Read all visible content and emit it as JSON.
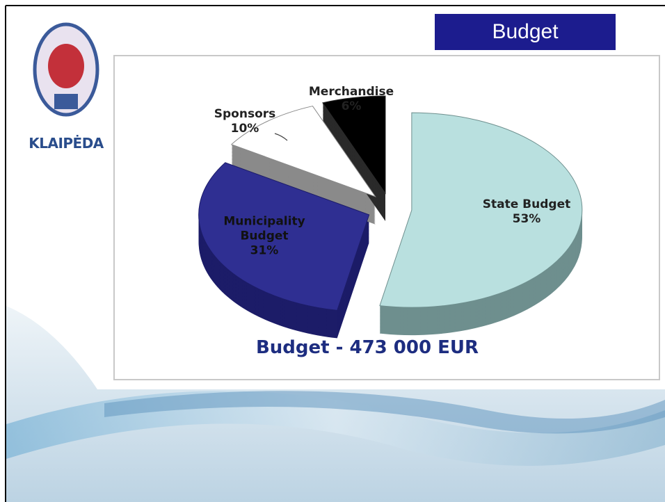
{
  "slide_title": "Budget",
  "logo": {
    "text": "KLAIPĖDA"
  },
  "chart_data": {
    "type": "pie",
    "title": "Budget - 473 000 EUR",
    "categories": [
      "State Budget",
      "Municipality Budget",
      "Sponsors",
      "Merchandise"
    ],
    "values": [
      53,
      31,
      10,
      6
    ],
    "value_labels": [
      "53%",
      "31%",
      "10%",
      "6%"
    ],
    "colors": [
      "#b9e0df",
      "#2f2f92",
      "#ffffff",
      "#000000"
    ],
    "side_colors": [
      "#6e8f8e",
      "#1c1c68",
      "#8a8a8a",
      "#2a2a2a"
    ]
  }
}
